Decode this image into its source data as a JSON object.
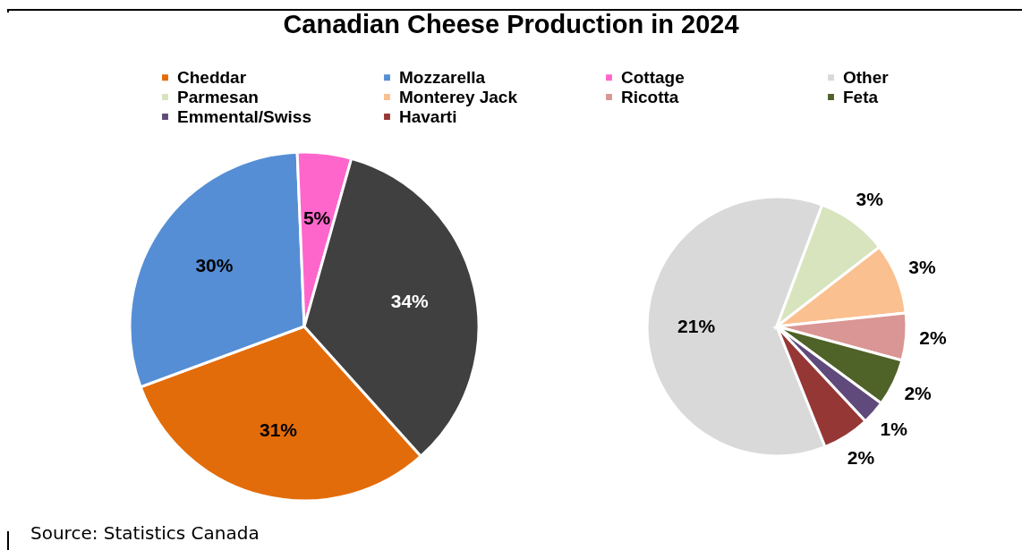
{
  "chart_data": [
    {
      "type": "pie",
      "title": "Canadian Cheese Production in 2024",
      "categories": [
        "Cheddar",
        "Mozzarella",
        "Cottage",
        null
      ],
      "values": [
        31,
        30,
        5,
        34
      ],
      "colors": [
        "#e36c0a",
        "#558ed5",
        "#ff66cc",
        "#404040"
      ],
      "value_labels": [
        "31%",
        "30%",
        "5%",
        "34%"
      ],
      "legend": "top",
      "annotations": [
        "Source: Statistics Canada"
      ]
    },
    {
      "type": "pie",
      "categories": [
        "Other",
        "Parmesan",
        "Monterey Jack",
        "Ricotta",
        "Feta",
        "Emmental/Swiss",
        "Havarti"
      ],
      "values": [
        21,
        3,
        3,
        2,
        2,
        1,
        2
      ],
      "colors": [
        "#d9d9d9",
        "#d7e4bd",
        "#fac090",
        "#d99694",
        "#4f6228",
        "#604a7b",
        "#953735"
      ],
      "value_labels": [
        "21%",
        "3%",
        "3%",
        "2%",
        "2%",
        "1%",
        "2%"
      ],
      "legend": "top"
    }
  ]
}
